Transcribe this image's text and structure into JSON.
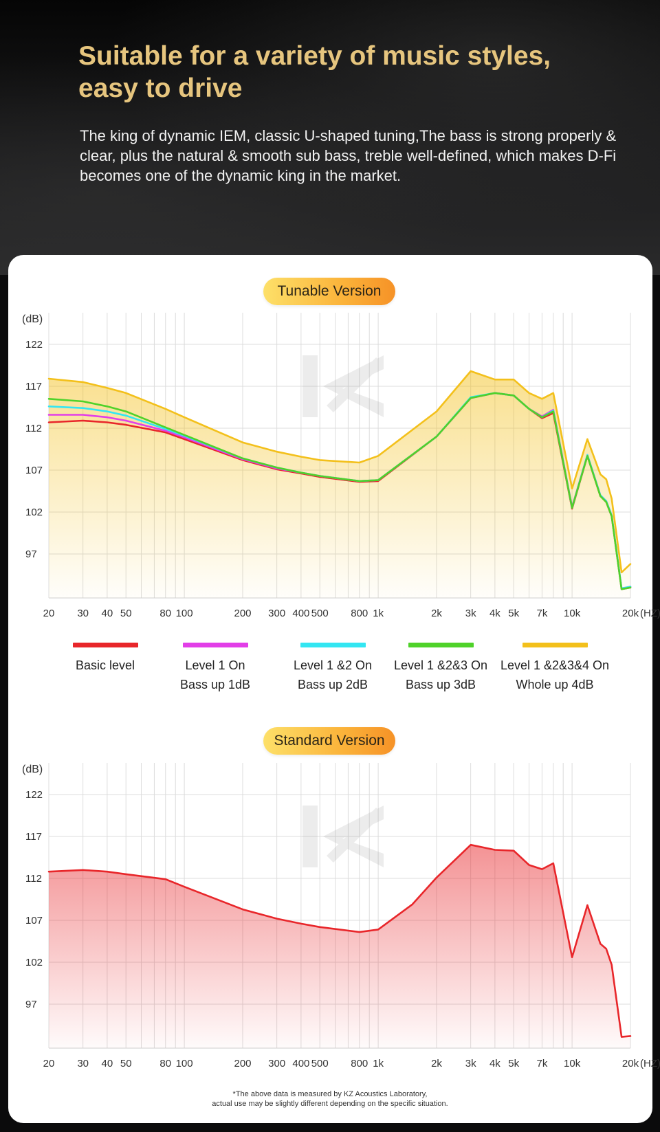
{
  "header": {
    "title_line1": "Suitable for a variety of music styles,",
    "title_line2": "easy to drive",
    "description": "The king of dynamic IEM, classic U-shaped tuning,The bass is strong properly & clear, plus the natural & smooth sub bass, treble well-defined, which makes D-Fi becomes one of the dynamic king in the market."
  },
  "tunable": {
    "pill_label": "Tunable Version"
  },
  "standard": {
    "pill_label": "Standard Version"
  },
  "legend": [
    {
      "line1": "Basic level",
      "line2": "",
      "color": "#e8262a"
    },
    {
      "line1": "Level 1 On",
      "line2": "Bass up 1dB",
      "color": "#e23ee8"
    },
    {
      "line1": "Level 1 &2 On",
      "line2": "Bass up 2dB",
      "color": "#33e6f2"
    },
    {
      "line1": "Level 1 &2&3 On",
      "line2": "Bass up 3dB",
      "color": "#4fd22a"
    },
    {
      "line1": "Level 1 &2&3&4 On",
      "line2": "Whole up 4dB",
      "color": "#f3c01b"
    }
  ],
  "footnote": {
    "line1": "*The above data is measured by KZ Acoustics Laboratory,",
    "line2": "actual use may be slightly different depending on the specific situation."
  },
  "chart_data": [
    {
      "type": "line",
      "title": "Tunable Version",
      "ylabel": "(dB)",
      "xlabel": "(HZ)",
      "x_scale": "log",
      "xlim": [
        20,
        20000
      ],
      "ylim": [
        92,
        125
      ],
      "x_ticks": [
        20,
        30,
        40,
        50,
        80,
        100,
        200,
        300,
        400,
        500,
        800,
        1000,
        2000,
        3000,
        4000,
        5000,
        7000,
        10000,
        20000
      ],
      "x_tick_labels": [
        "20",
        "30",
        "40",
        "50",
        "80",
        "100",
        "200",
        "300",
        "400",
        "500",
        "800",
        "1k",
        "2k",
        "3k",
        "4k",
        "5k",
        "7k",
        "10k",
        "20k"
      ],
      "y_ticks": [
        97,
        102,
        107,
        112,
        117,
        122
      ],
      "grid": true,
      "series": [
        {
          "name": "Basic level",
          "color": "#e8262a",
          "x": [
            20,
            30,
            40,
            50,
            80,
            100,
            200,
            300,
            400,
            500,
            800,
            1000,
            2000,
            3000,
            4000,
            5000,
            6000,
            7000,
            8000,
            10000,
            12000,
            14000,
            15000,
            16000,
            18000,
            20000
          ],
          "y": [
            112.7,
            112.9,
            112.7,
            112.4,
            111.5,
            110.7,
            108.2,
            107.1,
            106.6,
            106.2,
            105.6,
            105.7,
            111.0,
            115.6,
            116.2,
            115.9,
            114.3,
            113.2,
            113.8,
            102.4,
            108.7,
            103.9,
            103.2,
            101.5,
            92.8,
            93.0
          ]
        },
        {
          "name": "Level 1 On",
          "color": "#e23ee8",
          "x": [
            20,
            30,
            40,
            50,
            80,
            100,
            200,
            300,
            400,
            500,
            800,
            1000,
            2000,
            3000,
            4000,
            5000,
            6000,
            7000,
            8000,
            10000,
            12000,
            14000,
            15000,
            16000,
            18000,
            20000
          ],
          "y": [
            113.6,
            113.6,
            113.3,
            112.9,
            111.7,
            110.9,
            108.3,
            107.2,
            106.7,
            106.3,
            105.7,
            105.8,
            111.0,
            115.6,
            116.2,
            115.9,
            114.3,
            113.4,
            114.2,
            102.6,
            108.8,
            104.0,
            103.3,
            101.6,
            92.9,
            93.1
          ]
        },
        {
          "name": "Level 1 &2 On",
          "color": "#33e6f2",
          "x": [
            20,
            30,
            40,
            50,
            80,
            100,
            200,
            300,
            400,
            500,
            800,
            1000,
            2000,
            3000,
            4000,
            5000,
            6000,
            7000,
            8000,
            10000,
            12000,
            14000,
            15000,
            16000,
            18000,
            20000
          ],
          "y": [
            114.6,
            114.4,
            114.0,
            113.5,
            111.9,
            111.1,
            108.4,
            107.3,
            106.7,
            106.3,
            105.7,
            105.8,
            111.0,
            115.7,
            116.2,
            115.9,
            114.3,
            113.3,
            114.1,
            102.5,
            108.8,
            104.0,
            103.3,
            101.6,
            92.9,
            93.1
          ]
        },
        {
          "name": "Level 1 &2&3 On",
          "color": "#4fd22a",
          "x": [
            20,
            30,
            40,
            50,
            80,
            100,
            200,
            300,
            400,
            500,
            800,
            1000,
            2000,
            3000,
            4000,
            5000,
            6000,
            7000,
            8000,
            10000,
            12000,
            14000,
            15000,
            16000,
            18000,
            20000
          ],
          "y": [
            115.5,
            115.2,
            114.6,
            114.0,
            112.1,
            111.2,
            108.4,
            107.3,
            106.7,
            106.3,
            105.7,
            105.8,
            111.0,
            115.6,
            116.2,
            115.9,
            114.3,
            113.3,
            114.0,
            102.5,
            108.7,
            103.9,
            103.2,
            101.5,
            92.8,
            93.0
          ]
        },
        {
          "name": "Level 1 &2&3&4 On",
          "color": "#f3c01b",
          "fill": true,
          "x": [
            20,
            30,
            40,
            50,
            80,
            100,
            200,
            300,
            400,
            500,
            800,
            1000,
            2000,
            3000,
            4000,
            5000,
            6000,
            7000,
            8000,
            10000,
            12000,
            14000,
            15000,
            16000,
            18000,
            20000
          ],
          "y": [
            117.9,
            117.5,
            116.8,
            116.2,
            114.3,
            113.3,
            110.3,
            109.2,
            108.6,
            108.2,
            107.9,
            108.7,
            114.0,
            118.8,
            117.8,
            117.8,
            116.2,
            115.5,
            116.2,
            104.8,
            110.7,
            106.5,
            105.9,
            103.6,
            94.8,
            95.8
          ]
        }
      ]
    },
    {
      "type": "area",
      "title": "Standard Version",
      "ylabel": "(dB)",
      "xlabel": "(HZ)",
      "x_scale": "log",
      "xlim": [
        20,
        20000
      ],
      "ylim": [
        92,
        125
      ],
      "x_ticks": [
        20,
        30,
        40,
        50,
        80,
        100,
        200,
        300,
        400,
        500,
        800,
        1000,
        2000,
        3000,
        4000,
        5000,
        7000,
        10000,
        20000
      ],
      "x_tick_labels": [
        "20",
        "30",
        "40",
        "50",
        "80",
        "100",
        "200",
        "300",
        "400",
        "500",
        "800",
        "1k",
        "2k",
        "3k",
        "4k",
        "5k",
        "7k",
        "10k",
        "20k"
      ],
      "y_ticks": [
        97,
        102,
        107,
        112,
        117,
        122
      ],
      "grid": true,
      "series": [
        {
          "color": "#e8262a",
          "fill": true,
          "x": [
            20,
            30,
            40,
            50,
            80,
            100,
            200,
            300,
            400,
            500,
            800,
            1000,
            1500,
            2000,
            3000,
            4000,
            5000,
            6000,
            7000,
            8000,
            10000,
            12000,
            14000,
            15000,
            16000,
            18000,
            20000
          ],
          "y": [
            112.8,
            113.0,
            112.8,
            112.5,
            111.9,
            111.0,
            108.3,
            107.2,
            106.6,
            106.2,
            105.6,
            105.9,
            108.9,
            112.1,
            116.0,
            115.4,
            115.3,
            113.6,
            113.1,
            113.8,
            102.6,
            108.8,
            104.2,
            103.6,
            101.7,
            93.1,
            93.2
          ]
        }
      ]
    }
  ]
}
